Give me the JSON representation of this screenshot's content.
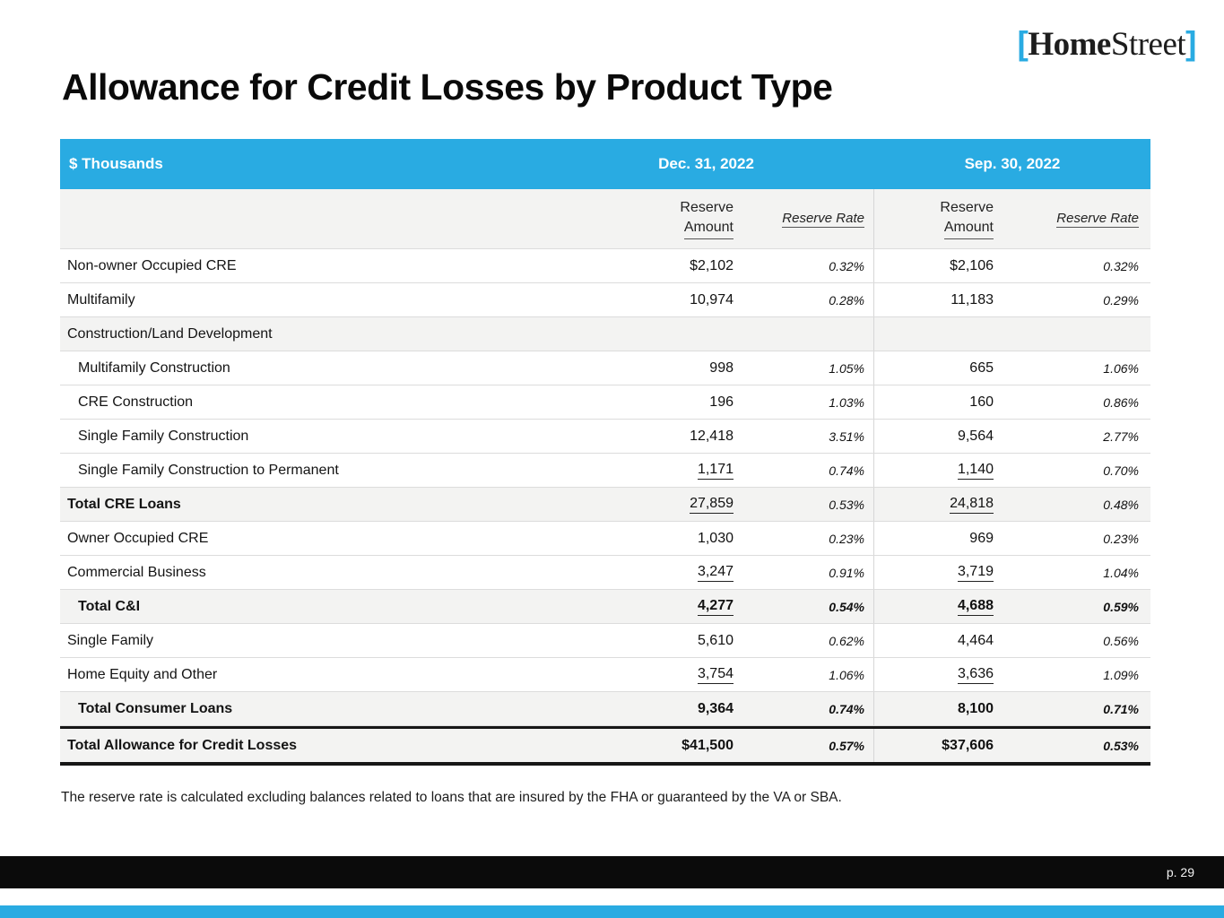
{
  "brand": {
    "bracket_open": "[",
    "name_part1": "Home",
    "name_part2": "Street",
    "bracket_close": "]",
    "accent_color": "#29ABE2"
  },
  "title": "Allowance for Credit Losses by Product Type",
  "table": {
    "unit_label": "$ Thousands",
    "period1": "Dec. 31, 2022",
    "period2": "Sep. 30, 2022",
    "col_amount_line1": "Reserve",
    "col_amount_line2": "Amount",
    "col_rate": "Reserve Rate",
    "rows": [
      {
        "label": "Non-owner Occupied CRE",
        "a1": "$2,102",
        "r1": "0.32%",
        "a2": "$2,106",
        "r2": "0.32%"
      },
      {
        "label": "Multifamily",
        "a1": "10,974",
        "r1": "0.28%",
        "a2": "11,183",
        "r2": "0.29%"
      },
      {
        "label": "Construction/Land Development",
        "a1": "",
        "r1": "",
        "a2": "",
        "r2": ""
      },
      {
        "label": "Multifamily Construction",
        "a1": "998",
        "r1": "1.05%",
        "a2": "665",
        "r2": "1.06%"
      },
      {
        "label": "CRE Construction",
        "a1": "196",
        "r1": "1.03%",
        "a2": "160",
        "r2": "0.86%"
      },
      {
        "label": "Single Family Construction",
        "a1": "12,418",
        "r1": "3.51%",
        "a2": "9,564",
        "r2": "2.77%"
      },
      {
        "label": "Single Family Construction to Permanent",
        "a1": "1,171",
        "r1": "0.74%",
        "a2": "1,140",
        "r2": "0.70%"
      },
      {
        "label": "Total CRE Loans",
        "a1": "27,859",
        "r1": "0.53%",
        "a2": "24,818",
        "r2": "0.48%"
      },
      {
        "label": "Owner Occupied CRE",
        "a1": "1,030",
        "r1": "0.23%",
        "a2": "969",
        "r2": "0.23%"
      },
      {
        "label": "Commercial Business",
        "a1": "3,247",
        "r1": "0.91%",
        "a2": "3,719",
        "r2": "1.04%"
      },
      {
        "label": "Total C&I",
        "a1": "4,277",
        "r1": "0.54%",
        "a2": "4,688",
        "r2": "0.59%"
      },
      {
        "label": "Single Family",
        "a1": "5,610",
        "r1": "0.62%",
        "a2": "4,464",
        "r2": "0.56%"
      },
      {
        "label": "Home Equity and Other",
        "a1": "3,754",
        "r1": "1.06%",
        "a2": "3,636",
        "r2": "1.09%"
      },
      {
        "label": "Total Consumer Loans",
        "a1": "9,364",
        "r1": "0.74%",
        "a2": "8,100",
        "r2": "0.71%"
      },
      {
        "label": "Total Allowance for Credit Losses",
        "a1": "$41,500",
        "r1": "0.57%",
        "a2": "$37,606",
        "r2": "0.53%"
      }
    ]
  },
  "footnote": "The reserve rate is calculated excluding balances related to loans that are insured by the FHA or guaranteed by the VA or SBA.",
  "footer": {
    "page_label": "p. 29"
  }
}
